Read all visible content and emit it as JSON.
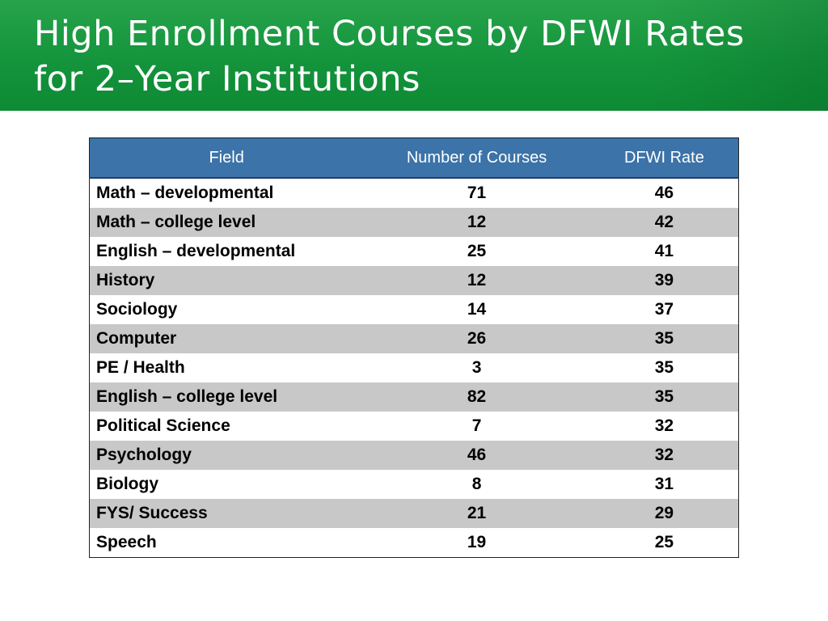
{
  "slide": {
    "title_line1": "High Enrollment Courses by DFWI Rates",
    "title_line2": "for 2–Year Institutions"
  },
  "table": {
    "headers": [
      "Field",
      "Number of Courses",
      "DFWI Rate"
    ],
    "rows": [
      [
        "Math – developmental",
        "71",
        "46"
      ],
      [
        "Math – college level",
        "12",
        "42"
      ],
      [
        "English – developmental",
        "25",
        "41"
      ],
      [
        "History",
        "12",
        "39"
      ],
      [
        "Sociology",
        "14",
        "37"
      ],
      [
        "Computer",
        "26",
        "35"
      ],
      [
        "PE / Health",
        "3",
        "35"
      ],
      [
        "English – college level",
        "82",
        "35"
      ],
      [
        "Political Science",
        "7",
        "32"
      ],
      [
        "Psychology",
        "46",
        "32"
      ],
      [
        "Biology",
        "8",
        "31"
      ],
      [
        "FYS/ Success",
        "21",
        "29"
      ],
      [
        "Speech",
        "19",
        "25"
      ]
    ]
  },
  "colors": {
    "title_bar": "#14943c",
    "header_fill": "#3c73a8",
    "alt_row": "#c8c8c8"
  }
}
